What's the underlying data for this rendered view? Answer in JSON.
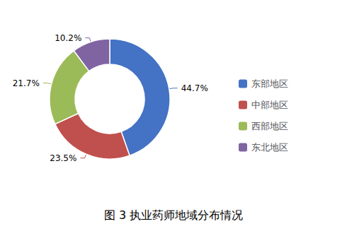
{
  "chart_data": {
    "type": "donut",
    "title": "图 3 执业药师地域分布情况",
    "categories": [
      "东部地区",
      "中部地区",
      "西部地区",
      "东北地区"
    ],
    "values": [
      44.7,
      23.5,
      21.7,
      10.2
    ],
    "value_labels": [
      "44.7%",
      "23.5%",
      "21.7%",
      "10.2%"
    ],
    "colors": [
      "#4472C4",
      "#C0504D",
      "#9BBB59",
      "#8064A2"
    ],
    "data_labels": true,
    "legend": "right"
  }
}
